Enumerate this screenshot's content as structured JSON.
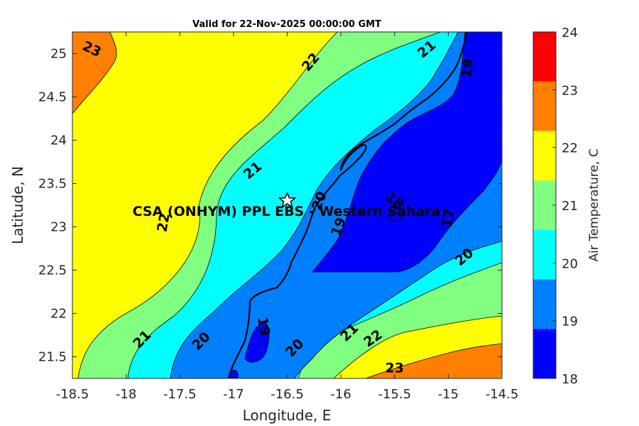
{
  "title": "Valid for 22-Nov-2025 00:00:00 GMT",
  "chart_data": {
    "type": "contour",
    "title": "Valid for 22-Nov-2025 00:00:00 GMT",
    "xlabel": "Longitude, E",
    "ylabel": "Latitude, N",
    "xlim": [
      -18.5,
      -14.5
    ],
    "ylim": [
      21.25,
      25.25
    ],
    "xticks": [
      "-18.5",
      "-18",
      "-17.5",
      "-17",
      "-16.5",
      "-16",
      "-15.5",
      "-15",
      "-14.5"
    ],
    "yticks": [
      "21.5",
      "22",
      "22.5",
      "23",
      "23.5",
      "24",
      "24.5",
      "25"
    ],
    "colorbar": {
      "label": "Air Temperature, C",
      "ticks": [
        "18",
        "19",
        "20",
        "21",
        "22",
        "23",
        "24"
      ],
      "colors": [
        "#0000ff",
        "#0080ff",
        "#00ffff",
        "#80ff80",
        "#ffff00",
        "#ff8000",
        "#ff0000"
      ]
    },
    "contour_labels": [
      {
        "text": "23",
        "lon": -18.32,
        "lat": 25.05
      },
      {
        "text": "22",
        "lon": -16.28,
        "lat": 24.9
      },
      {
        "text": "21",
        "lon": -15.2,
        "lat": 25.05
      },
      {
        "text": "19",
        "lon": -14.82,
        "lat": 24.83
      },
      {
        "text": "21",
        "lon": -16.82,
        "lat": 23.65
      },
      {
        "text": "20",
        "lon": -16.2,
        "lat": 23.3
      },
      {
        "text": "18",
        "lon": -15.5,
        "lat": 23.3
      },
      {
        "text": "22",
        "lon": -17.65,
        "lat": 23.05
      },
      {
        "text": "19",
        "lon": -16.02,
        "lat": 23.0
      },
      {
        "text": "17",
        "lon": -15.0,
        "lat": 23.1
      },
      {
        "text": "20",
        "lon": -14.85,
        "lat": 22.65
      },
      {
        "text": "19",
        "lon": -16.72,
        "lat": 21.85
      },
      {
        "text": "21",
        "lon": -17.85,
        "lat": 21.7
      },
      {
        "text": "20",
        "lon": -17.3,
        "lat": 21.68
      },
      {
        "text": "21",
        "lon": -15.92,
        "lat": 21.78
      },
      {
        "text": "22",
        "lon": -15.7,
        "lat": 21.71
      },
      {
        "text": "20",
        "lon": -16.43,
        "lat": 21.6
      },
      {
        "text": "23",
        "lon": -15.5,
        "lat": 21.37
      }
    ],
    "site": {
      "name": "CSA (ONHYM) PPL EBS - Western Sahara",
      "lon": -16.5,
      "lat": 23.3
    }
  }
}
